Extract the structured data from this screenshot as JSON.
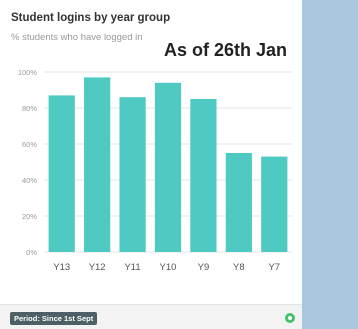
{
  "card": {
    "title": "Student logins by year group",
    "subtitle": "% students who have logged in",
    "overlay_note": "As of 26th Jan",
    "period_label": "Period: Since 1st Sept"
  },
  "colors": {
    "bar": "#4fcac2",
    "grid": "#e6e6e6",
    "tick_text": "#9a9a9a",
    "status": "#46c26a"
  },
  "chart_data": {
    "type": "bar",
    "title": "Student logins by year group",
    "subtitle": "% students who have logged in",
    "xlabel": "",
    "ylabel": "",
    "categories": [
      "Y13",
      "Y12",
      "Y11",
      "Y10",
      "Y9",
      "Y8",
      "Y7"
    ],
    "values": [
      87,
      97,
      86,
      94,
      85,
      55,
      53
    ],
    "ylim": [
      0,
      100
    ],
    "yticks": [
      "0%",
      "20%",
      "40%",
      "60%",
      "80%",
      "100%"
    ],
    "grid": true,
    "legend": "none"
  }
}
